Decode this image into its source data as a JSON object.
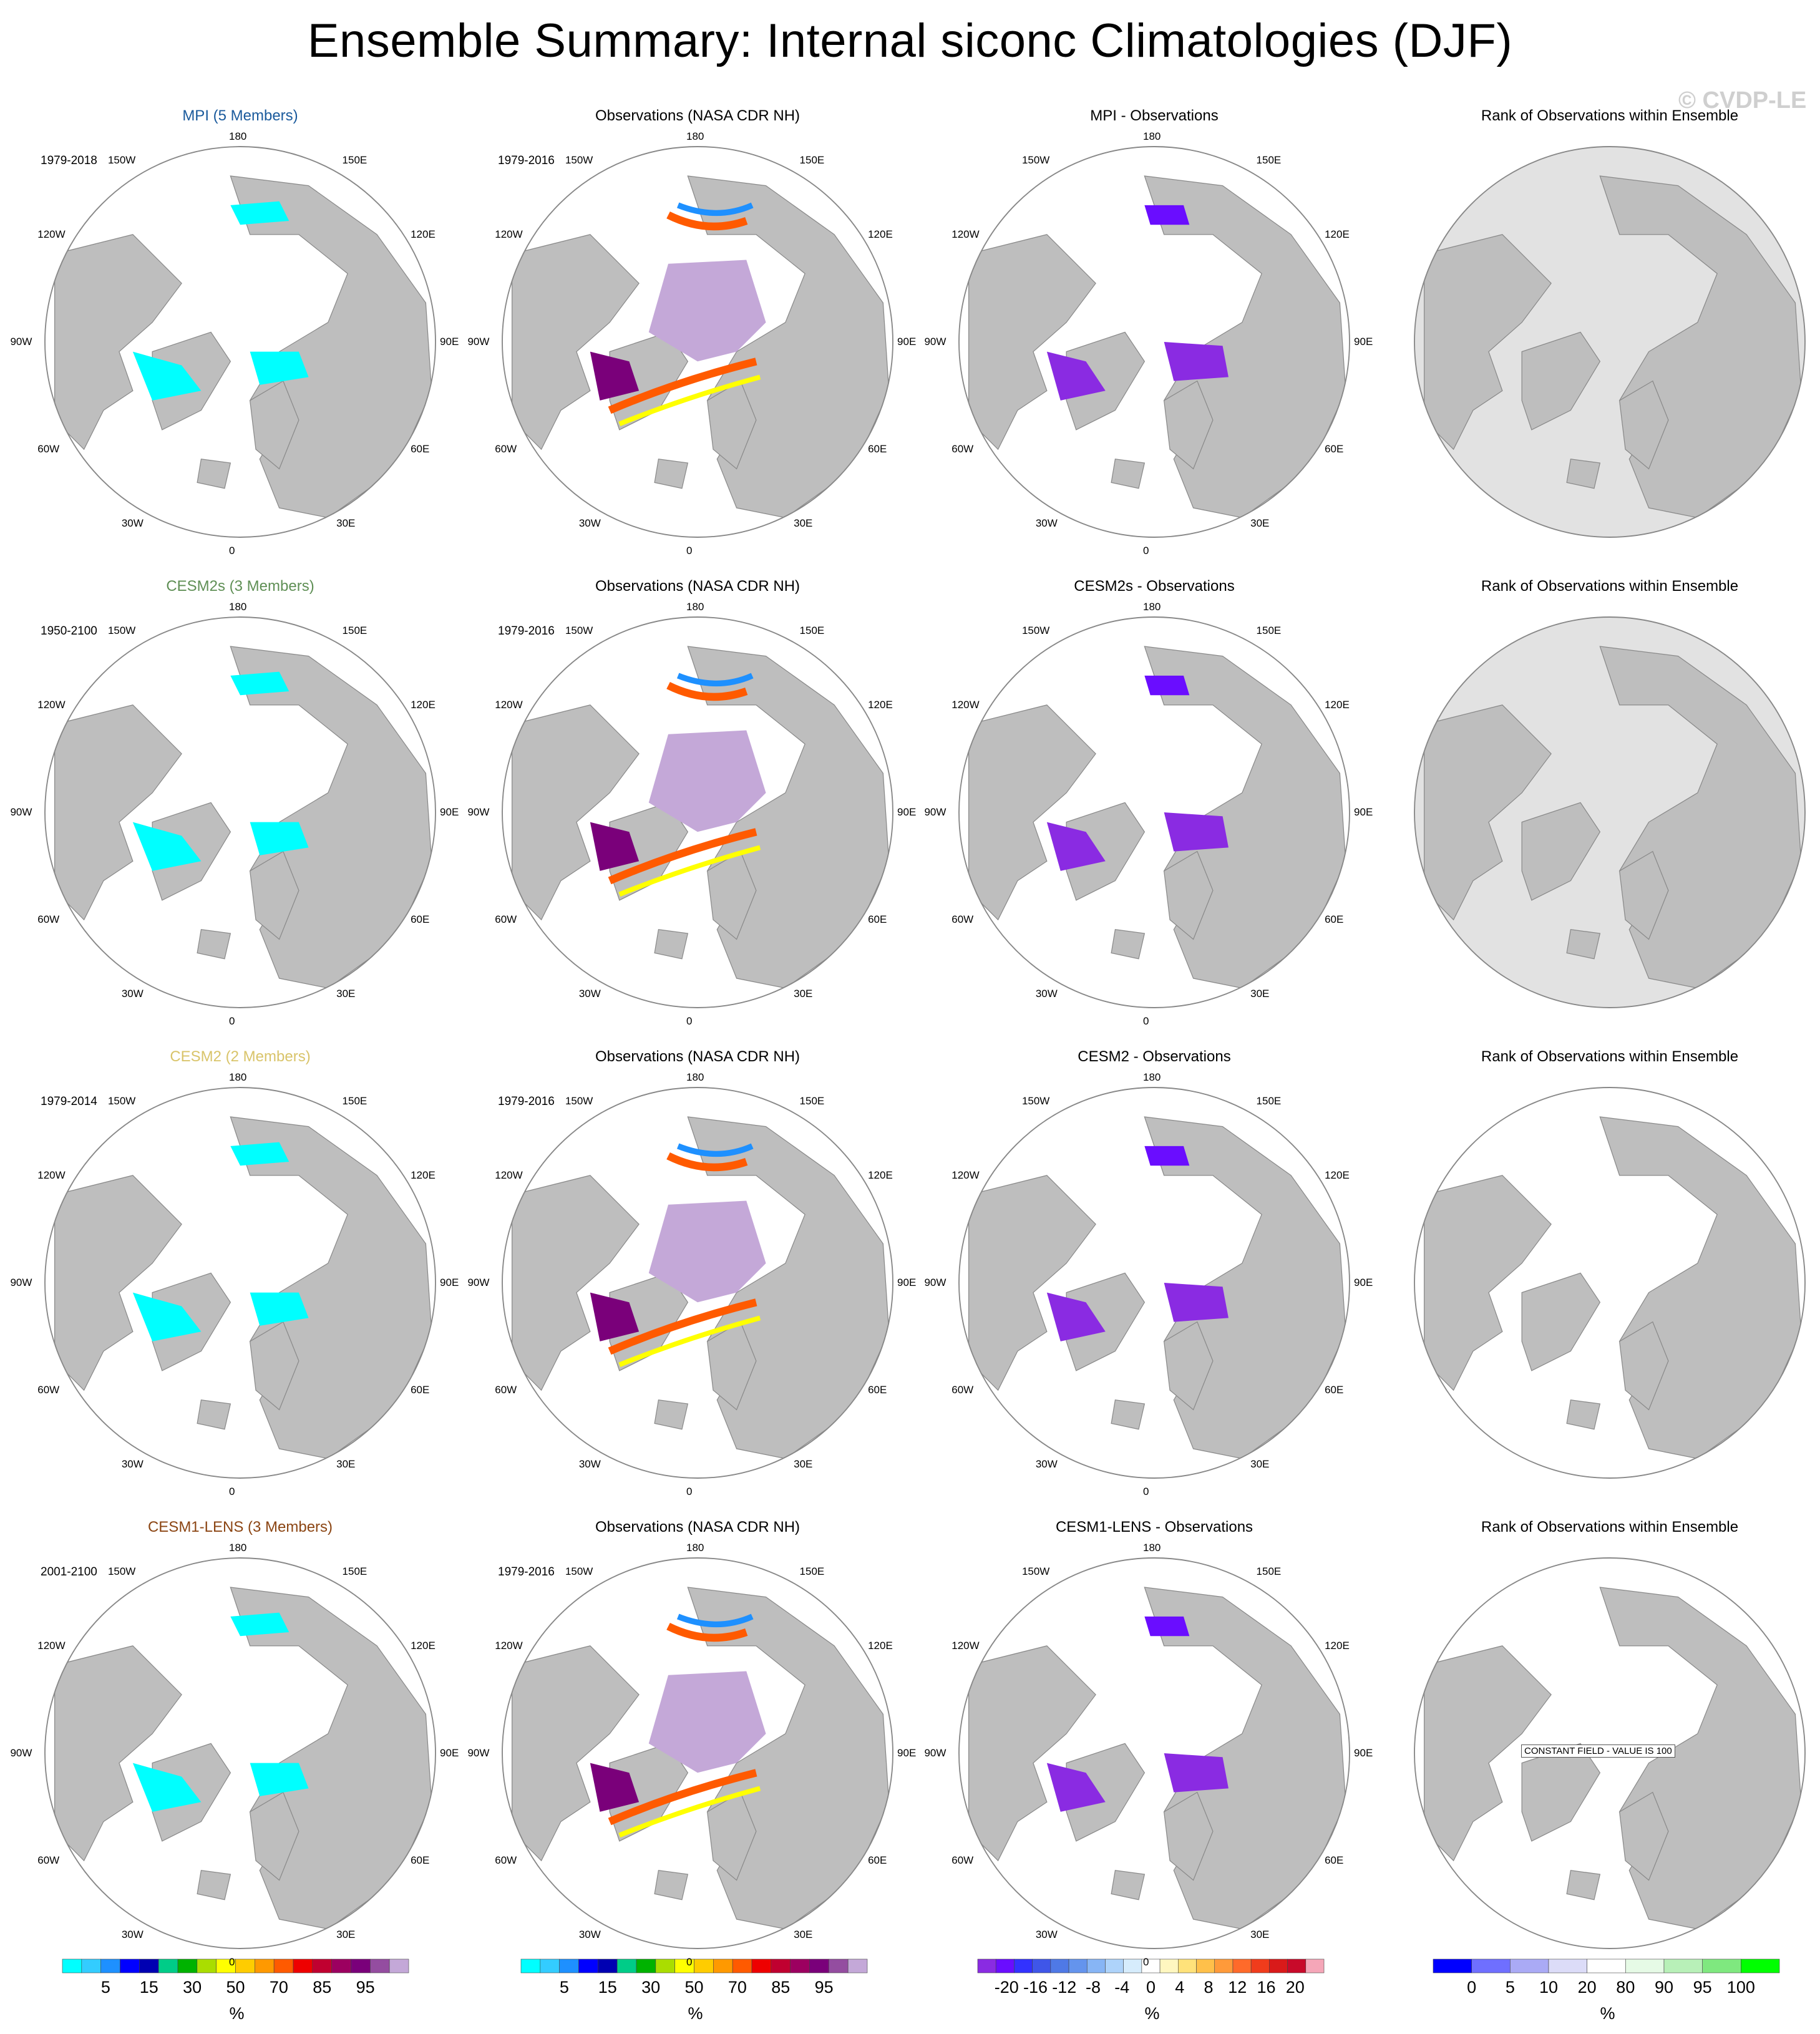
{
  "title": "Ensemble Summary: Internal siconc Climatologies (DJF)",
  "watermark": "© CVDP-LE",
  "lon_labels": [
    "180",
    "150E",
    "120E",
    "90E",
    "60E",
    "30E",
    "0",
    "30W",
    "60W",
    "90W",
    "120W",
    "150W"
  ],
  "rows": [
    {
      "model_title": "MPI (5 Members)",
      "model_color": "#1a5a9c",
      "model_period": "1979-2018",
      "obs_title": "Observations (NASA CDR NH)",
      "obs_period": "1979-2016",
      "diff_title": "MPI - Observations",
      "rank_title": "Rank of Observations within Ensemble"
    },
    {
      "model_title": "CESM2s (3 Members)",
      "model_color": "#5f8f55",
      "model_period": "1950-2100",
      "obs_title": "Observations (NASA CDR NH)",
      "obs_period": "1979-2016",
      "diff_title": "CESM2s - Observations",
      "rank_title": "Rank of Observations within Ensemble"
    },
    {
      "model_title": "CESM2 (2 Members)",
      "model_color": "#d9c46a",
      "model_period": "1979-2014",
      "obs_title": "Observations (NASA CDR NH)",
      "obs_period": "1979-2016",
      "diff_title": "CESM2 - Observations",
      "rank_title": "Rank of Observations within Ensemble"
    },
    {
      "model_title": "CESM1-LENS (3 Members)",
      "model_color": "#8b4513",
      "model_period": "2001-2100",
      "obs_title": "Observations (NASA CDR NH)",
      "obs_period": "1979-2016",
      "diff_title": "CESM1-LENS - Observations",
      "rank_title": "Rank of Observations within Ensemble",
      "rank_note": "CONSTANT FIELD - VALUE IS 100"
    }
  ],
  "colorbars": [
    {
      "units": "%",
      "labels": [
        "5",
        "15",
        "30",
        "50",
        "70",
        "85",
        "95"
      ],
      "colors": [
        "#00ffff",
        "#33ccff",
        "#1e90ff",
        "#0000ff",
        "#0000b2",
        "#00cc88",
        "#00b200",
        "#aadd00",
        "#ffff00",
        "#ffcc00",
        "#ff9900",
        "#ff5a00",
        "#ee0000",
        "#c00030",
        "#9c0060",
        "#7a007a",
        "#944da0",
        "#c4a8d8"
      ]
    },
    {
      "units": "%",
      "labels": [
        "5",
        "15",
        "30",
        "50",
        "70",
        "85",
        "95"
      ],
      "colors": [
        "#00ffff",
        "#33ccff",
        "#1e90ff",
        "#0000ff",
        "#0000b2",
        "#00cc88",
        "#00b200",
        "#aadd00",
        "#ffff00",
        "#ffcc00",
        "#ff9900",
        "#ff5a00",
        "#ee0000",
        "#c00030",
        "#9c0060",
        "#7a007a",
        "#944da0",
        "#c4a8d8"
      ]
    },
    {
      "units": "%",
      "labels": [
        "-20",
        "-16",
        "-12",
        "-8",
        "-4",
        "0",
        "4",
        "8",
        "12",
        "16",
        "20"
      ],
      "colors": [
        "#8a2be2",
        "#6a0dff",
        "#3232ff",
        "#3f56e8",
        "#4f79e6",
        "#6494ed",
        "#87b5f5",
        "#aed3fa",
        "#d6ecfc",
        "#ffffff",
        "#fff7c0",
        "#ffe27a",
        "#ffc04a",
        "#ff9a3a",
        "#ff6a2a",
        "#f03c1c",
        "#d91a1a",
        "#c80a2a",
        "#f5a6b8"
      ]
    },
    {
      "units": "%",
      "labels": [
        "0",
        "5",
        "10",
        "20",
        "80",
        "90",
        "95",
        "100"
      ],
      "colors": [
        "#0000ff",
        "#6f6fff",
        "#aaaaf5",
        "#dcdcf8",
        "#ffffff",
        "#e6fae6",
        "#b8f0b8",
        "#7fe87f",
        "#00ff00"
      ]
    }
  ]
}
